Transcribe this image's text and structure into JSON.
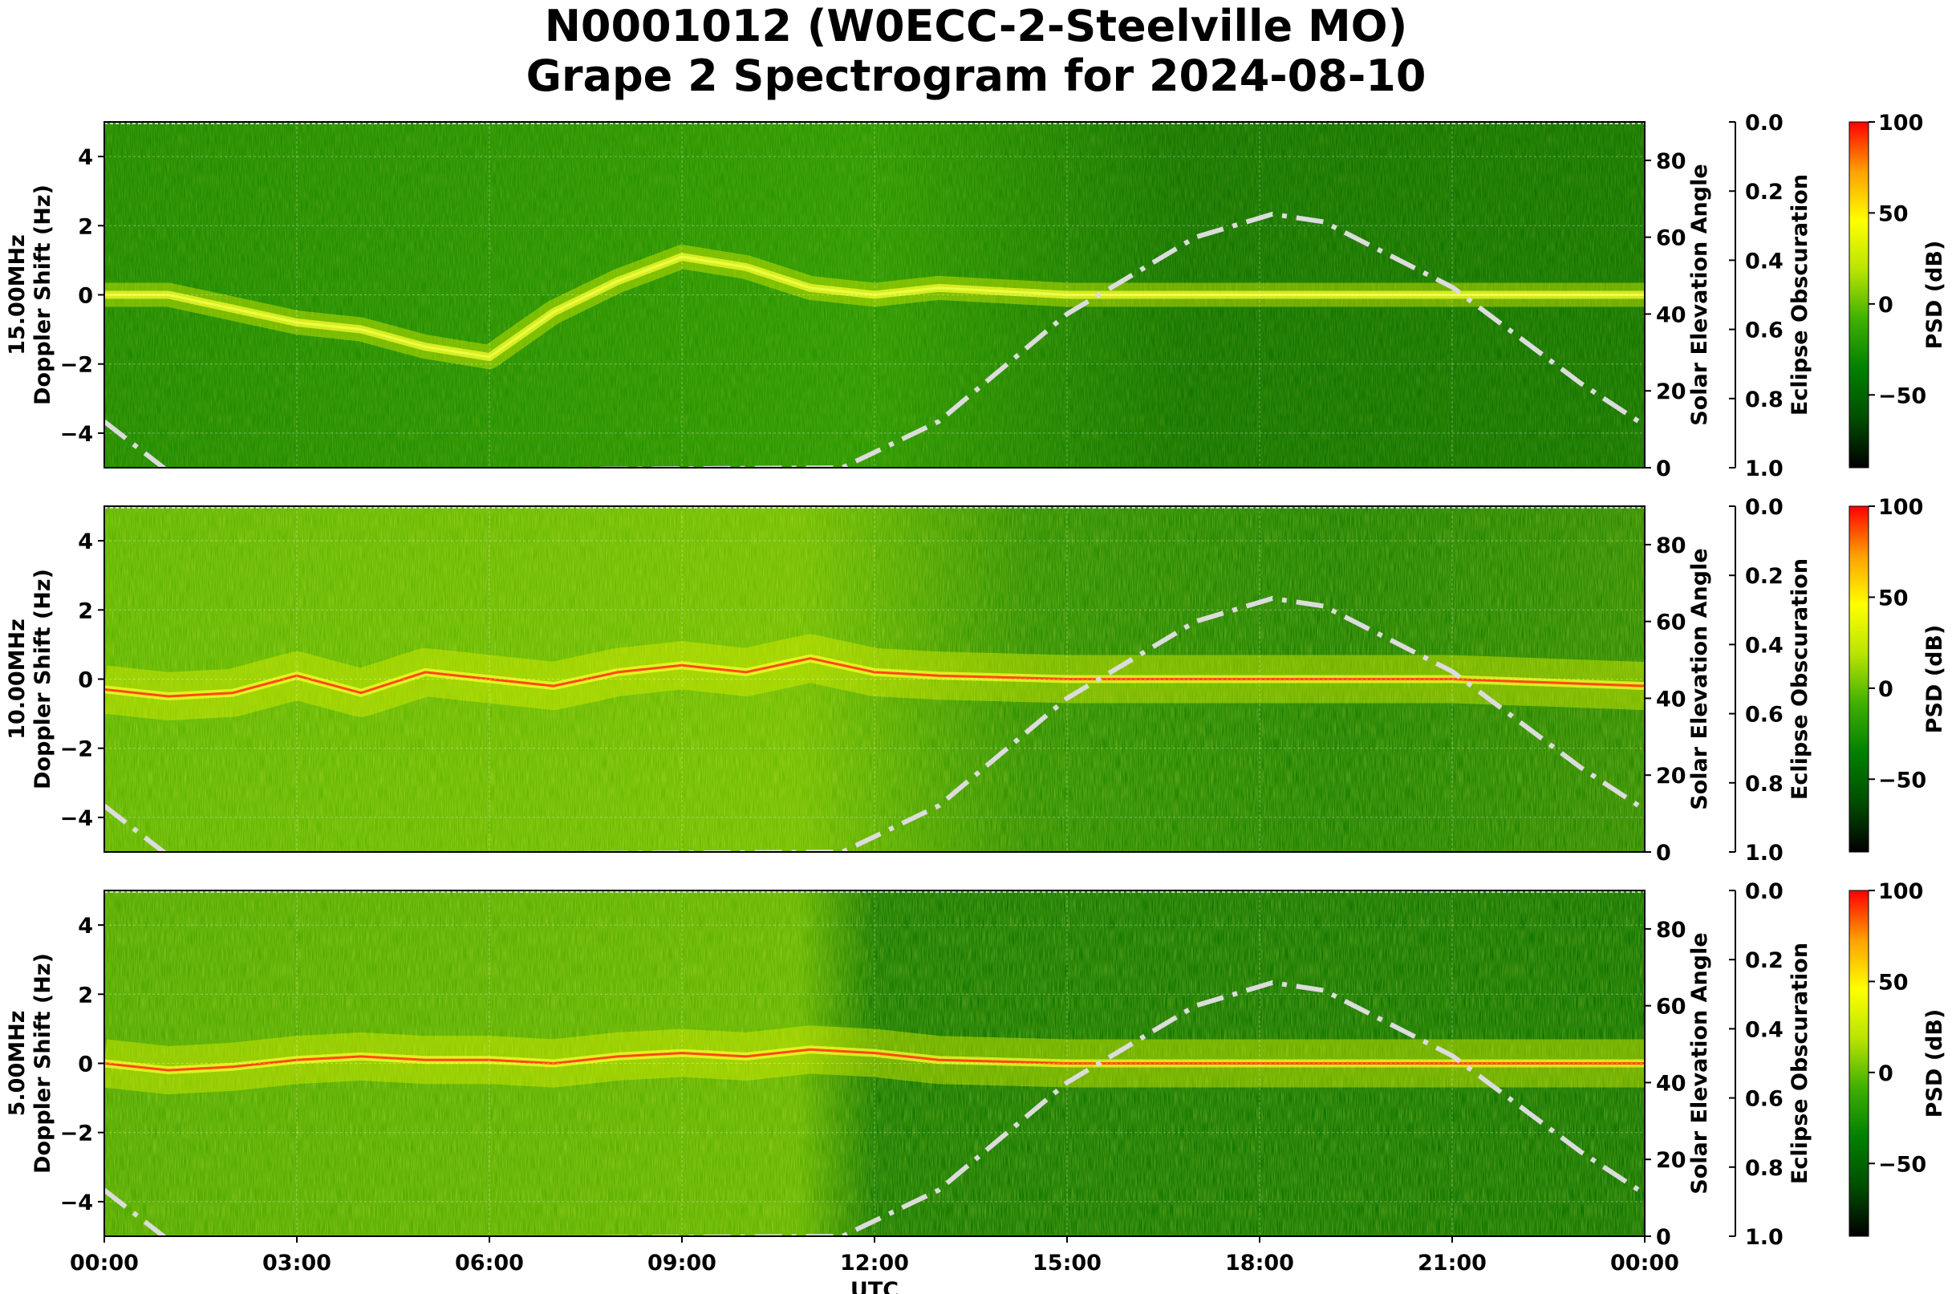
{
  "title_line1": "N0001012 (W0ECC-2-Steelville MO)",
  "title_line2": "Grape 2 Spectrogram for 2024-08-10",
  "chart_data": {
    "type": "heatmap",
    "xlabel": "UTC",
    "x_ticks": [
      "00:00",
      "03:00",
      "06:00",
      "09:00",
      "12:00",
      "15:00",
      "18:00",
      "21:00",
      "00:00"
    ],
    "x_range_hours": [
      0,
      24
    ],
    "grid": true,
    "panels": [
      {
        "frequency": "15.00MHz",
        "ylabel_left": "Doppler Shift (Hz)",
        "ylim": [
          -5,
          5
        ],
        "y_ticks": [
          "4",
          "2",
          "0",
          "−2",
          "−4"
        ],
        "y_tick_values": [
          4,
          2,
          0,
          -2,
          -4
        ],
        "ylabel_right": "Solar Elevation Angle",
        "right_ticks": [
          "80",
          "60",
          "40",
          "20",
          "0"
        ],
        "right_tick_values": [
          80,
          60,
          40,
          20,
          0
        ],
        "right_ylim": [
          0,
          90
        ],
        "eclipse_label": "Eclipse Obscuration",
        "eclipse_ticks": [
          "0.0",
          "0.2",
          "0.4",
          "0.6",
          "0.8",
          "1.0"
        ],
        "colorbar_label": "PSD (dB)",
        "colorbar_ticks": [
          "100",
          "50",
          "0",
          "−50"
        ],
        "colorbar_tick_values": [
          100,
          50,
          0,
          -50
        ],
        "colorbar_range": [
          -90,
          100
        ],
        "doppler_trace": [
          [
            0,
            0
          ],
          [
            1,
            0
          ],
          [
            2,
            -0.4
          ],
          [
            3,
            -0.8
          ],
          [
            4,
            -1.0
          ],
          [
            5,
            -1.5
          ],
          [
            6,
            -1.8
          ],
          [
            7,
            -0.5
          ],
          [
            8,
            0.4
          ],
          [
            9,
            1.1
          ],
          [
            10,
            0.8
          ],
          [
            11,
            0.2
          ],
          [
            12,
            0.0
          ],
          [
            13,
            0.2
          ],
          [
            14,
            0.1
          ],
          [
            15,
            0
          ],
          [
            18,
            0
          ],
          [
            21,
            0
          ],
          [
            24,
            0
          ]
        ]
      },
      {
        "frequency": "10.00MHz",
        "ylabel_left": "Doppler Shift (Hz)",
        "ylim": [
          -5,
          5
        ],
        "y_ticks": [
          "4",
          "2",
          "0",
          "−2",
          "−4"
        ],
        "y_tick_values": [
          4,
          2,
          0,
          -2,
          -4
        ],
        "ylabel_right": "Solar Elevation Angle",
        "right_ticks": [
          "80",
          "60",
          "40",
          "20",
          "0"
        ],
        "right_tick_values": [
          80,
          60,
          40,
          20,
          0
        ],
        "right_ylim": [
          0,
          90
        ],
        "eclipse_label": "Eclipse Obscuration",
        "eclipse_ticks": [
          "0.0",
          "0.2",
          "0.4",
          "0.6",
          "0.8",
          "1.0"
        ],
        "colorbar_label": "PSD (dB)",
        "colorbar_ticks": [
          "100",
          "50",
          "0",
          "−50"
        ],
        "colorbar_tick_values": [
          100,
          50,
          0,
          -50
        ],
        "colorbar_range": [
          -90,
          100
        ],
        "doppler_trace": [
          [
            0,
            -0.3
          ],
          [
            1,
            -0.5
          ],
          [
            2,
            -0.4
          ],
          [
            3,
            0.1
          ],
          [
            4,
            -0.4
          ],
          [
            5,
            0.2
          ],
          [
            6,
            0.0
          ],
          [
            7,
            -0.2
          ],
          [
            8,
            0.2
          ],
          [
            9,
            0.4
          ],
          [
            10,
            0.2
          ],
          [
            11,
            0.6
          ],
          [
            12,
            0.2
          ],
          [
            13,
            0.1
          ],
          [
            15,
            0
          ],
          [
            18,
            0
          ],
          [
            21,
            0
          ],
          [
            24,
            -0.2
          ]
        ]
      },
      {
        "frequency": "5.00MHz",
        "ylabel_left": "Doppler Shift (Hz)",
        "ylim": [
          -5,
          5
        ],
        "y_ticks": [
          "4",
          "2",
          "0",
          "−2",
          "−4"
        ],
        "y_tick_values": [
          4,
          2,
          0,
          -2,
          -4
        ],
        "ylabel_right": "Solar Elevation Angle",
        "right_ticks": [
          "80",
          "60",
          "40",
          "20",
          "0"
        ],
        "right_tick_values": [
          80,
          60,
          40,
          20,
          0
        ],
        "right_ylim": [
          0,
          90
        ],
        "eclipse_label": "Eclipse Obscuration",
        "eclipse_ticks": [
          "0.0",
          "0.2",
          "0.4",
          "0.6",
          "0.8",
          "1.0"
        ],
        "colorbar_label": "PSD (dB)",
        "colorbar_ticks": [
          "100",
          "50",
          "0",
          "−50"
        ],
        "colorbar_tick_values": [
          100,
          50,
          0,
          -50
        ],
        "colorbar_range": [
          -90,
          100
        ],
        "doppler_trace": [
          [
            0,
            0
          ],
          [
            1,
            -0.2
          ],
          [
            2,
            -0.1
          ],
          [
            3,
            0.1
          ],
          [
            4,
            0.2
          ],
          [
            5,
            0.1
          ],
          [
            6,
            0.1
          ],
          [
            7,
            0.0
          ],
          [
            8,
            0.2
          ],
          [
            9,
            0.3
          ],
          [
            10,
            0.2
          ],
          [
            11,
            0.4
          ],
          [
            12,
            0.3
          ],
          [
            13,
            0.1
          ],
          [
            15,
            0
          ],
          [
            18,
            0
          ],
          [
            21,
            0
          ],
          [
            24,
            0
          ]
        ]
      }
    ],
    "solar_elevation_curve": {
      "style": "dash-dot",
      "color": "#dcdcdc",
      "points": [
        [
          0,
          12
        ],
        [
          1,
          -1
        ],
        [
          11.5,
          0
        ],
        [
          13,
          12
        ],
        [
          15,
          40
        ],
        [
          17,
          60
        ],
        [
          18,
          65
        ],
        [
          18.2,
          66
        ],
        [
          19,
          64
        ],
        [
          21,
          47
        ],
        [
          23,
          22
        ],
        [
          24,
          11
        ]
      ]
    },
    "colormap": [
      "#000000",
      "#004d00",
      "#008000",
      "#3fb000",
      "#b8e400",
      "#ffff00",
      "#ffa000",
      "#ff0000"
    ]
  }
}
